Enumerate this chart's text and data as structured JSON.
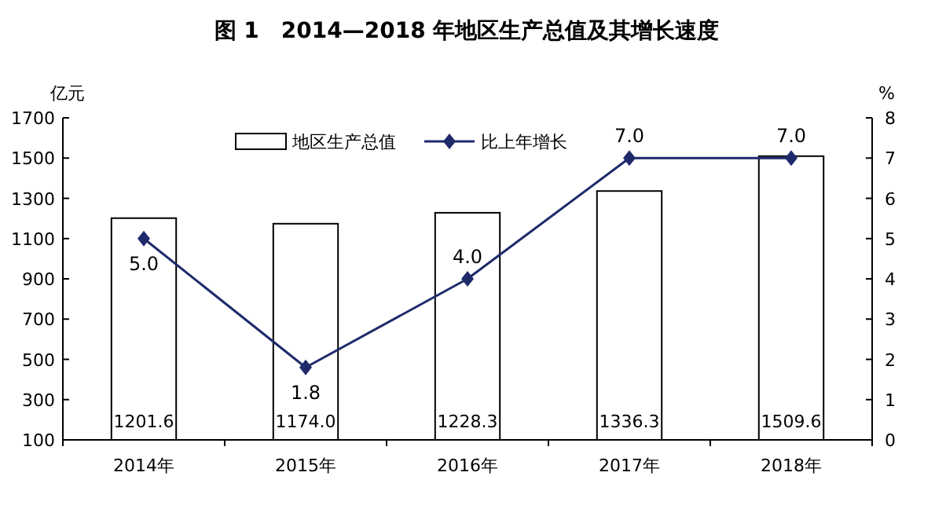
{
  "chart_data": {
    "type": "bar",
    "title": "图 1　2014—2018 年地区生产总值及其增长速度",
    "ylabel": "亿元",
    "y2label": "%",
    "categories": [
      "2014年",
      "2015年",
      "2016年",
      "2017年",
      "2018年"
    ],
    "series": [
      {
        "name": "地区生产总值",
        "color": "#ffffff",
        "values": [
          1201.6,
          1174.0,
          1228.3,
          1336.3,
          1509.6
        ],
        "value_labels": [
          "1201.6",
          "1174.0",
          "1228.3",
          "1336.3",
          "1509.6"
        ]
      },
      {
        "name": "比上年增长",
        "type": "line",
        "axis": "y2",
        "color": "#1f2a6b",
        "values": [
          5.0,
          1.8,
          4.0,
          7.0,
          7.0
        ],
        "value_labels": [
          "5.0",
          "1.8",
          "4.0",
          "7.0",
          "7.0"
        ]
      }
    ],
    "ylim": [
      100,
      1700
    ],
    "yticks": [
      100,
      300,
      500,
      700,
      900,
      1100,
      1300,
      1500,
      1700
    ],
    "y2lim": [
      0,
      8
    ],
    "y2ticks": [
      0,
      1,
      2,
      3,
      4,
      5,
      6,
      7,
      8
    ],
    "legend": "top",
    "marker": "diamond",
    "grid": false
  }
}
